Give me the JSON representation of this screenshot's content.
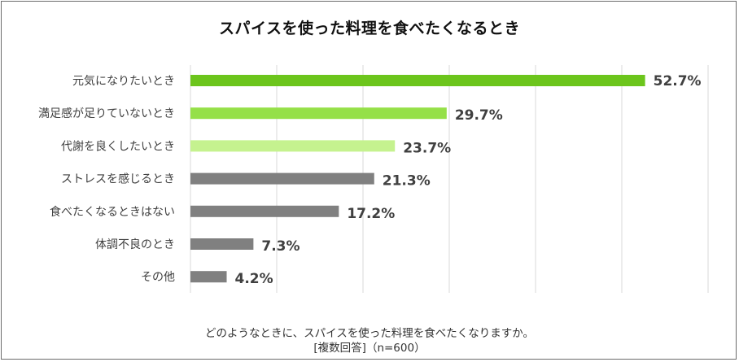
{
  "chart_data": {
    "type": "bar",
    "orientation": "horizontal",
    "title": "スパイスを使った料理を食べたくなるとき",
    "categories": [
      "元気になりたいとき",
      "満足感が足りていないとき",
      "代謝を良くしたいとき",
      "ストレスを感じるとき",
      "食べたくなるときはない",
      "体調不良のとき",
      "その他"
    ],
    "values": [
      52.7,
      29.7,
      23.7,
      21.3,
      17.2,
      7.3,
      4.2
    ],
    "value_labels": [
      "52.7%",
      "29.7%",
      "23.7%",
      "21.3%",
      "17.2%",
      "7.3%",
      "4.2%"
    ],
    "bar_colors": [
      "#6cc51c",
      "#95e048",
      "#c5f28f",
      "#808080",
      "#808080",
      "#808080",
      "#808080"
    ],
    "xlim": [
      0,
      60
    ],
    "gridlines": [
      0,
      10,
      20,
      30,
      40,
      50,
      60
    ],
    "grid": true,
    "legend": "none"
  },
  "footer": {
    "question": "どのようなときに、スパイスを使った料理を食べたくなりますか。",
    "note": "[複数回答]（n=600）"
  }
}
